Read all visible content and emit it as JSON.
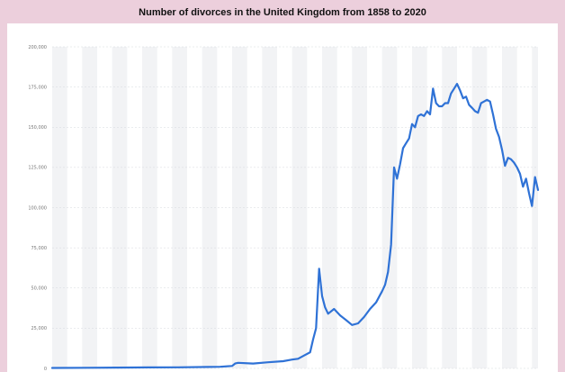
{
  "chart_data": {
    "type": "line",
    "title": "Number of divorces in the United Kingdom from 1858 to 2020",
    "xlabel": "",
    "ylabel": "",
    "xlim": [
      1858,
      2020
    ],
    "ylim": [
      0,
      200000
    ],
    "yticks": [
      0,
      25000,
      50000,
      75000,
      100000,
      125000,
      150000,
      175000,
      200000
    ],
    "ytick_labels": [
      "0",
      "25,000",
      "50,000",
      "75,000",
      "100,000",
      "125,000",
      "150,000",
      "175,000",
      "200,000"
    ],
    "grid": true,
    "legend": "none",
    "series": [
      {
        "color": "#2f72d6",
        "x": [
          1858,
          1870,
          1880,
          1890,
          1900,
          1910,
          1914,
          1918,
          1919,
          1920,
          1925,
          1930,
          1935,
          1938,
          1940,
          1942,
          1944,
          1945,
          1946,
          1947,
          1948,
          1949,
          1950,
          1952,
          1954,
          1956,
          1958,
          1960,
          1962,
          1964,
          1966,
          1968,
          1969,
          1970,
          1971,
          1972,
          1973,
          1974,
          1975,
          1976,
          1977,
          1978,
          1979,
          1980,
          1981,
          1982,
          1983,
          1984,
          1985,
          1986,
          1987,
          1988,
          1989,
          1990,
          1991,
          1992,
          1993,
          1994,
          1995,
          1996,
          1997,
          1998,
          1999,
          2000,
          2001,
          2002,
          2003,
          2004,
          2005,
          2006,
          2007,
          2008,
          2009,
          2010,
          2011,
          2012,
          2013,
          2014,
          2015,
          2016,
          2017,
          2018,
          2019,
          2020
        ],
        "values": [
          300,
          400,
          500,
          600,
          700,
          900,
          1000,
          1500,
          3000,
          3500,
          3000,
          3800,
          4500,
          5500,
          6000,
          8000,
          10000,
          18000,
          25000,
          62000,
          45000,
          38000,
          34000,
          37000,
          33000,
          30000,
          27000,
          28000,
          32000,
          37000,
          41000,
          48000,
          52000,
          60000,
          77000,
          125000,
          118000,
          127000,
          137000,
          140000,
          143000,
          152000,
          150000,
          157000,
          158000,
          157000,
          160000,
          158000,
          174000,
          165000,
          163000,
          163000,
          165000,
          165000,
          171000,
          174000,
          177000,
          173000,
          168000,
          169000,
          164000,
          162000,
          160000,
          159000,
          165000,
          166000,
          167000,
          166000,
          158000,
          149000,
          144000,
          136000,
          126000,
          131000,
          130000,
          128000,
          125000,
          121000,
          113000,
          118000,
          109000,
          101000,
          119000,
          111000
        ]
      }
    ]
  }
}
